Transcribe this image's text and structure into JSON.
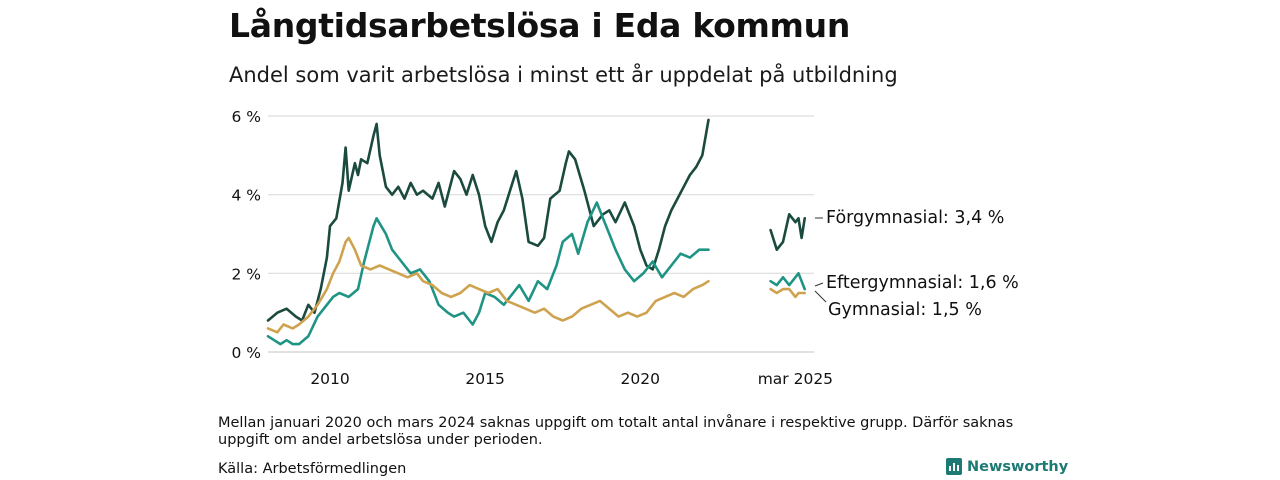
{
  "title": "Långtidsarbetslösa i Eda kommun",
  "subtitle": "Andel som varit arbetslösa i minst ett år uppdelat på utbildning",
  "note": "Mellan januari 2020 och mars 2024 saknas uppgift om totalt antal invånare i respektive grupp. Därför saknas uppgift om andel arbetslösa under perioden.",
  "source": "Källa: Arbetsförmedlingen",
  "brand": "Newsworthy",
  "colors": {
    "forgymnasial": "#1b4a3f",
    "eftergymnasial": "#1f9484",
    "gymnasial": "#cfa24f",
    "grid": "#dddddd"
  },
  "chart_data": {
    "type": "line",
    "title": "Långtidsarbetslösa i Eda kommun",
    "subtitle": "Andel som varit arbetslösa i minst ett år uppdelat på utbildning",
    "ylim": [
      0,
      6
    ],
    "y_ticks": [
      "0 %",
      "2 %",
      "4 %",
      "6 %"
    ],
    "x_ticks": [
      "2010",
      "2015",
      "2020",
      "mar 2025"
    ],
    "grid": "horizontal",
    "series": [
      {
        "name": "Förgymnasial",
        "color_key": "forgymnasial",
        "end_label": "Förgymnasial: 3,4 %",
        "points": [
          [
            2008.0,
            0.8
          ],
          [
            2008.3,
            1.0
          ],
          [
            2008.6,
            1.1
          ],
          [
            2008.9,
            0.9
          ],
          [
            2009.1,
            0.8
          ],
          [
            2009.3,
            1.2
          ],
          [
            2009.5,
            1.0
          ],
          [
            2009.7,
            1.6
          ],
          [
            2009.9,
            2.4
          ],
          [
            2010.0,
            3.2
          ],
          [
            2010.2,
            3.4
          ],
          [
            2010.4,
            4.3
          ],
          [
            2010.5,
            5.2
          ],
          [
            2010.6,
            4.1
          ],
          [
            2010.8,
            4.8
          ],
          [
            2010.9,
            4.5
          ],
          [
            2011.0,
            4.9
          ],
          [
            2011.2,
            4.8
          ],
          [
            2011.4,
            5.5
          ],
          [
            2011.5,
            5.8
          ],
          [
            2011.6,
            5.0
          ],
          [
            2011.8,
            4.2
          ],
          [
            2012.0,
            4.0
          ],
          [
            2012.2,
            4.2
          ],
          [
            2012.4,
            3.9
          ],
          [
            2012.6,
            4.3
          ],
          [
            2012.8,
            4.0
          ],
          [
            2013.0,
            4.1
          ],
          [
            2013.3,
            3.9
          ],
          [
            2013.5,
            4.3
          ],
          [
            2013.7,
            3.7
          ],
          [
            2014.0,
            4.6
          ],
          [
            2014.2,
            4.4
          ],
          [
            2014.4,
            4.0
          ],
          [
            2014.6,
            4.5
          ],
          [
            2014.8,
            4.0
          ],
          [
            2015.0,
            3.2
          ],
          [
            2015.2,
            2.8
          ],
          [
            2015.4,
            3.3
          ],
          [
            2015.6,
            3.6
          ],
          [
            2015.8,
            4.1
          ],
          [
            2016.0,
            4.6
          ],
          [
            2016.2,
            3.9
          ],
          [
            2016.4,
            2.8
          ],
          [
            2016.7,
            2.7
          ],
          [
            2016.9,
            2.9
          ],
          [
            2017.1,
            3.9
          ],
          [
            2017.4,
            4.1
          ],
          [
            2017.6,
            4.8
          ],
          [
            2017.7,
            5.1
          ],
          [
            2017.9,
            4.9
          ],
          [
            2018.2,
            4.1
          ],
          [
            2018.5,
            3.2
          ],
          [
            2018.8,
            3.5
          ],
          [
            2019.0,
            3.6
          ],
          [
            2019.2,
            3.3
          ],
          [
            2019.5,
            3.8
          ],
          [
            2019.8,
            3.2
          ],
          [
            2020.0,
            2.6
          ],
          [
            2020.2,
            2.2
          ],
          [
            2020.4,
            2.1
          ],
          [
            2020.6,
            2.6
          ],
          [
            2020.8,
            3.2
          ],
          [
            2021.0,
            3.6
          ],
          [
            2021.2,
            3.9
          ],
          [
            2021.4,
            4.2
          ],
          [
            2021.6,
            4.5
          ],
          [
            2021.8,
            4.7
          ],
          [
            2022.0,
            5.0
          ],
          [
            2022.2,
            5.9
          ],
          null,
          [
            2024.2,
            3.1
          ],
          [
            2024.4,
            2.6
          ],
          [
            2024.6,
            2.8
          ],
          [
            2024.8,
            3.5
          ],
          [
            2025.0,
            3.3
          ],
          [
            2025.1,
            3.4
          ],
          [
            2025.2,
            2.9
          ],
          [
            2025.3,
            3.4
          ]
        ]
      },
      {
        "name": "Eftergymnasial",
        "color_key": "eftergymnasial",
        "end_label": "Eftergymnasial: 1,6 %",
        "points": [
          [
            2008.0,
            0.4
          ],
          [
            2008.2,
            0.3
          ],
          [
            2008.4,
            0.2
          ],
          [
            2008.6,
            0.3
          ],
          [
            2008.8,
            0.2
          ],
          [
            2009.0,
            0.2
          ],
          [
            2009.3,
            0.4
          ],
          [
            2009.6,
            0.9
          ],
          [
            2009.9,
            1.2
          ],
          [
            2010.1,
            1.4
          ],
          [
            2010.3,
            1.5
          ],
          [
            2010.6,
            1.4
          ],
          [
            2010.9,
            1.6
          ],
          [
            2011.1,
            2.3
          ],
          [
            2011.4,
            3.2
          ],
          [
            2011.5,
            3.4
          ],
          [
            2011.8,
            3.0
          ],
          [
            2012.0,
            2.6
          ],
          [
            2012.3,
            2.3
          ],
          [
            2012.6,
            2.0
          ],
          [
            2012.9,
            2.1
          ],
          [
            2013.2,
            1.8
          ],
          [
            2013.5,
            1.2
          ],
          [
            2013.8,
            1.0
          ],
          [
            2014.0,
            0.9
          ],
          [
            2014.3,
            1.0
          ],
          [
            2014.6,
            0.7
          ],
          [
            2014.8,
            1.0
          ],
          [
            2015.0,
            1.5
          ],
          [
            2015.3,
            1.4
          ],
          [
            2015.6,
            1.2
          ],
          [
            2015.9,
            1.5
          ],
          [
            2016.1,
            1.7
          ],
          [
            2016.4,
            1.3
          ],
          [
            2016.7,
            1.8
          ],
          [
            2017.0,
            1.6
          ],
          [
            2017.3,
            2.2
          ],
          [
            2017.5,
            2.8
          ],
          [
            2017.8,
            3.0
          ],
          [
            2018.0,
            2.5
          ],
          [
            2018.3,
            3.3
          ],
          [
            2018.6,
            3.8
          ],
          [
            2018.8,
            3.4
          ],
          [
            2019.0,
            3.0
          ],
          [
            2019.2,
            2.6
          ],
          [
            2019.5,
            2.1
          ],
          [
            2019.8,
            1.8
          ],
          [
            2020.1,
            2.0
          ],
          [
            2020.4,
            2.3
          ],
          [
            2020.7,
            1.9
          ],
          [
            2021.0,
            2.2
          ],
          [
            2021.3,
            2.5
          ],
          [
            2021.6,
            2.4
          ],
          [
            2021.9,
            2.6
          ],
          [
            2022.2,
            2.6
          ],
          null,
          [
            2024.2,
            1.8
          ],
          [
            2024.4,
            1.7
          ],
          [
            2024.6,
            1.9
          ],
          [
            2024.8,
            1.7
          ],
          [
            2025.0,
            1.9
          ],
          [
            2025.1,
            2.0
          ],
          [
            2025.3,
            1.6
          ]
        ]
      },
      {
        "name": "Gymnasial",
        "color_key": "gymnasial",
        "end_label": "Gymnasial: 1,5 %",
        "points": [
          [
            2008.0,
            0.6
          ],
          [
            2008.3,
            0.5
          ],
          [
            2008.5,
            0.7
          ],
          [
            2008.8,
            0.6
          ],
          [
            2009.0,
            0.7
          ],
          [
            2009.3,
            0.9
          ],
          [
            2009.6,
            1.2
          ],
          [
            2009.9,
            1.6
          ],
          [
            2010.1,
            2.0
          ],
          [
            2010.3,
            2.3
          ],
          [
            2010.5,
            2.8
          ],
          [
            2010.6,
            2.9
          ],
          [
            2010.8,
            2.6
          ],
          [
            2011.0,
            2.2
          ],
          [
            2011.3,
            2.1
          ],
          [
            2011.6,
            2.2
          ],
          [
            2011.9,
            2.1
          ],
          [
            2012.2,
            2.0
          ],
          [
            2012.5,
            1.9
          ],
          [
            2012.8,
            2.0
          ],
          [
            2013.0,
            1.8
          ],
          [
            2013.3,
            1.7
          ],
          [
            2013.6,
            1.5
          ],
          [
            2013.9,
            1.4
          ],
          [
            2014.2,
            1.5
          ],
          [
            2014.5,
            1.7
          ],
          [
            2014.8,
            1.6
          ],
          [
            2015.1,
            1.5
          ],
          [
            2015.4,
            1.6
          ],
          [
            2015.7,
            1.3
          ],
          [
            2016.0,
            1.2
          ],
          [
            2016.3,
            1.1
          ],
          [
            2016.6,
            1.0
          ],
          [
            2016.9,
            1.1
          ],
          [
            2017.2,
            0.9
          ],
          [
            2017.5,
            0.8
          ],
          [
            2017.8,
            0.9
          ],
          [
            2018.1,
            1.1
          ],
          [
            2018.4,
            1.2
          ],
          [
            2018.7,
            1.3
          ],
          [
            2019.0,
            1.1
          ],
          [
            2019.3,
            0.9
          ],
          [
            2019.6,
            1.0
          ],
          [
            2019.9,
            0.9
          ],
          [
            2020.2,
            1.0
          ],
          [
            2020.5,
            1.3
          ],
          [
            2020.8,
            1.4
          ],
          [
            2021.1,
            1.5
          ],
          [
            2021.4,
            1.4
          ],
          [
            2021.7,
            1.6
          ],
          [
            2022.0,
            1.7
          ],
          [
            2022.2,
            1.8
          ],
          null,
          [
            2024.2,
            1.6
          ],
          [
            2024.4,
            1.5
          ],
          [
            2024.6,
            1.6
          ],
          [
            2024.8,
            1.6
          ],
          [
            2025.0,
            1.4
          ],
          [
            2025.1,
            1.5
          ],
          [
            2025.3,
            1.5
          ]
        ]
      }
    ]
  }
}
